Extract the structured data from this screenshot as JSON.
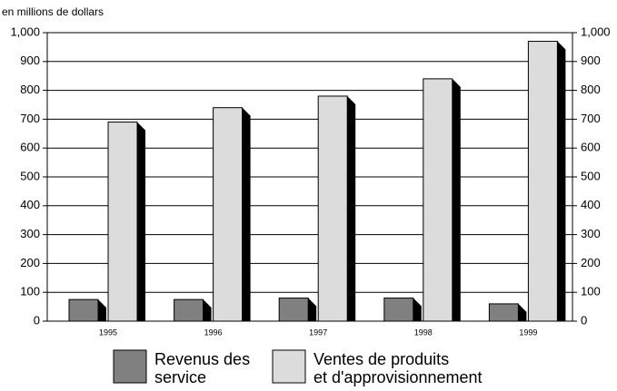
{
  "chart_data": {
    "type": "bar",
    "subtitle": "en millions de dollars",
    "categories": [
      "1995",
      "1996",
      "1997",
      "1998",
      "1999"
    ],
    "series": [
      {
        "name": "Revenus des\nservice",
        "color": "#808080",
        "values": [
          75,
          75,
          80,
          80,
          60
        ]
      },
      {
        "name": "Ventes de produits\net d'approvisionnement",
        "color": "#dcdcdc",
        "values": [
          690,
          740,
          780,
          840,
          970
        ]
      }
    ],
    "ylim": [
      0,
      1000
    ],
    "yticks": [
      0,
      100,
      200,
      300,
      400,
      500,
      600,
      700,
      800,
      900,
      {
        "value": 1000,
        "label": "1,000"
      }
    ],
    "y2lim": [
      0,
      1000
    ],
    "y2ticks": [
      0,
      100,
      200,
      300,
      400,
      500,
      600,
      700,
      800,
      900,
      {
        "value": 1000,
        "label": "1,000"
      }
    ],
    "grid": true
  }
}
